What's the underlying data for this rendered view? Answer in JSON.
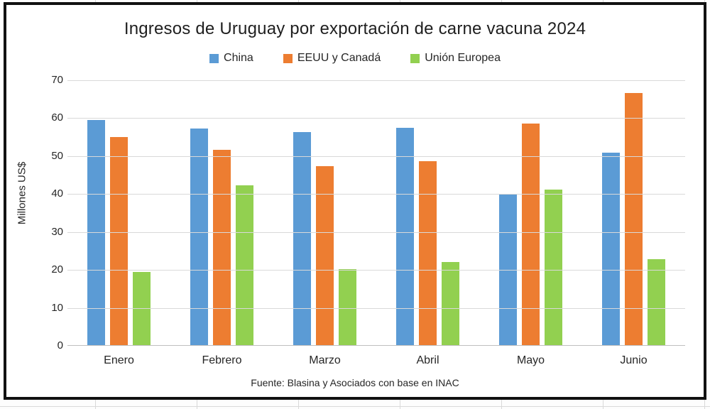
{
  "chart_data": {
    "type": "bar",
    "title": "Ingresos de Uruguay por exportación de carne vacuna 2024",
    "ylabel": "Millones US$",
    "xlabel": "",
    "source": "Fuente: Blasina y Asociados con base en INAC",
    "categories": [
      "Enero",
      "Febrero",
      "Marzo",
      "Abril",
      "Mayo",
      "Junio"
    ],
    "series": [
      {
        "name": "China",
        "color": "#5B9BD5",
        "values": [
          59.5,
          57.2,
          56.3,
          57.4,
          40.0,
          50.9
        ]
      },
      {
        "name": "EEUU y Canadá",
        "color": "#ED7D31",
        "values": [
          55.0,
          51.6,
          47.4,
          48.7,
          58.5,
          66.6
        ]
      },
      {
        "name": "Unión Europea",
        "color": "#92D050",
        "values": [
          19.5,
          42.3,
          20.3,
          22.0,
          41.1,
          22.8
        ]
      }
    ],
    "ylim": [
      0,
      70
    ],
    "ytick_step": 10,
    "grid": "horizontal",
    "legend_position": "top",
    "colors": {
      "gridline": "#d9d9d9",
      "zero_line": "#bfbfbf",
      "text": "#262626",
      "frame_border": "#111111"
    }
  }
}
